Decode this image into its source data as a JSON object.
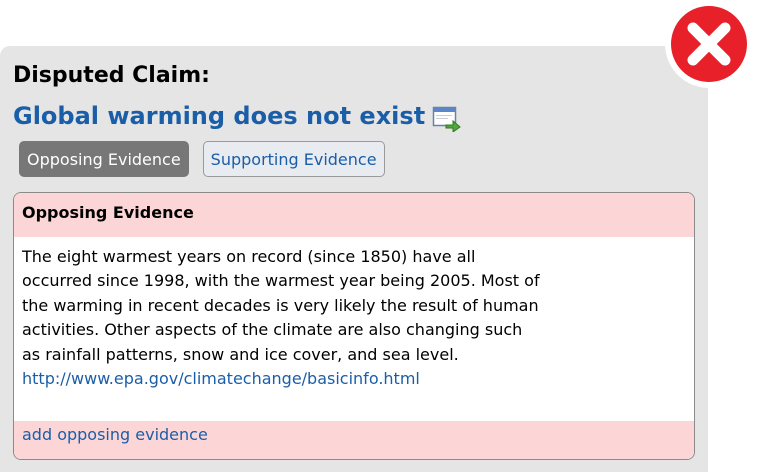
{
  "header": {
    "heading": "Disputed Claim:",
    "claim_title": "Global warming does not exist",
    "open_icon": "open-in-window-icon",
    "close_icon": "close-icon",
    "colors": {
      "link": "#1a5ea8",
      "close_red": "#e8202a",
      "evidence_tint": "#fcd6d6"
    }
  },
  "tabs": [
    {
      "label": "Opposing Evidence",
      "active": true
    },
    {
      "label": "Supporting Evidence",
      "active": false
    }
  ],
  "evidence": {
    "header": "Opposing Evidence",
    "text": "The eight warmest years on record (since 1850) have all occurred since 1998, with the warmest year being 2005. Most of the warming in recent decades is very likely the result of human activities. Other aspects of the climate are also changing such as rainfall patterns, snow and ice cover, and sea level.",
    "link": "http://www.epa.gov/climatechange/basicinfo.html",
    "add_link": "add opposing evidence"
  }
}
